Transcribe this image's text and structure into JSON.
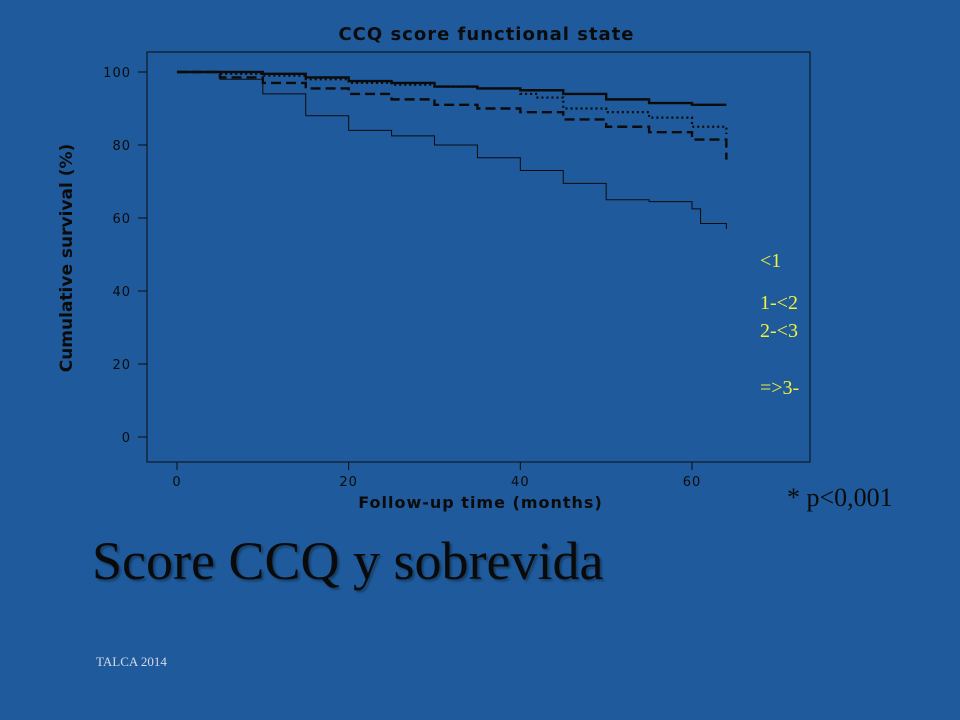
{
  "chart_data": {
    "type": "line",
    "title": "CCQ score functional state",
    "xlabel": "Follow-up time (months)",
    "ylabel": "Cumulative survival (%)",
    "xlim": [
      0,
      70
    ],
    "ylim": [
      0,
      100
    ],
    "xticks": [
      0,
      20,
      40,
      60
    ],
    "yticks": [
      0,
      20,
      40,
      60,
      80,
      100
    ],
    "series": [
      {
        "name": "<1",
        "style": "solid-thick",
        "x": [
          0,
          5,
          10,
          15,
          20,
          25,
          30,
          35,
          40,
          45,
          50,
          55,
          60,
          64
        ],
        "y": [
          100,
          100,
          99.5,
          98.5,
          97.5,
          97,
          96,
          95.5,
          95,
          94,
          92.5,
          91.5,
          91,
          91
        ]
      },
      {
        "name": "1-<2",
        "style": "dotted",
        "x": [
          0,
          5,
          10,
          15,
          20,
          25,
          30,
          35,
          40,
          42,
          45,
          50,
          55,
          60,
          64
        ],
        "y": [
          100,
          99.5,
          99,
          98,
          97,
          96.5,
          96,
          95.5,
          94,
          93,
          90,
          89,
          87.5,
          85,
          83
        ]
      },
      {
        "name": "2-<3",
        "style": "dashed",
        "x": [
          0,
          5,
          10,
          15,
          20,
          25,
          30,
          35,
          40,
          45,
          50,
          55,
          60,
          64
        ],
        "y": [
          100,
          98.5,
          97,
          95.5,
          94,
          92.5,
          91,
          90,
          89,
          87,
          85,
          83.5,
          81.5,
          76
        ]
      },
      {
        "name": "=>3-",
        "style": "solid-thin",
        "x": [
          0,
          5,
          10,
          15,
          20,
          25,
          30,
          35,
          40,
          45,
          50,
          55,
          60,
          61,
          64
        ],
        "y": [
          100,
          98,
          94,
          88,
          84,
          82.5,
          80,
          76.5,
          73,
          69.5,
          65,
          64.5,
          62.5,
          58.5,
          57
        ]
      }
    ]
  },
  "legend_labels": [
    "<1",
    "1-<2",
    "2-<3",
    "=>3-"
  ],
  "p_value": "* p<0,001",
  "slide_title": "Score  CCQ  y sobrevida",
  "footer": "TALCA 2014",
  "colors": {
    "background": "#1f5b9c",
    "line": "#0b0b0b",
    "legend": "#f2f23a"
  }
}
